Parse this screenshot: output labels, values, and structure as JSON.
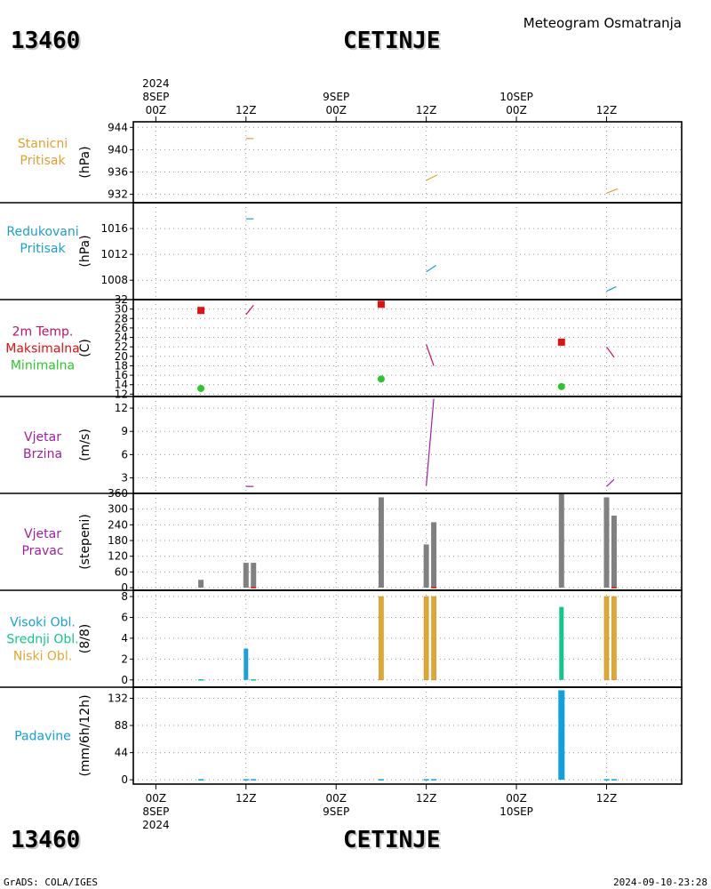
{
  "header": {
    "station_id": "13460",
    "station_name": "CETINJE",
    "product": "Meteogram Osmatranja"
  },
  "footer": {
    "credit": "GrADS: COLA/IGES",
    "timestamp": "2024-09-10-23:28"
  },
  "time_axis": {
    "ticks": [
      "00Z",
      "12Z",
      "00Z",
      "12Z",
      "00Z",
      "12Z"
    ],
    "ticks_hours": [
      0,
      12,
      24,
      36,
      48,
      60
    ],
    "top_dates": [
      {
        "hour": 0,
        "lines": [
          "2024",
          "8SEP",
          "00Z"
        ]
      },
      {
        "hour": 12,
        "lines": [
          "12Z"
        ]
      },
      {
        "hour": 24,
        "lines": [
          "9SEP",
          "00Z"
        ]
      },
      {
        "hour": 36,
        "lines": [
          "12Z"
        ]
      },
      {
        "hour": 48,
        "lines": [
          "10SEP",
          "00Z"
        ]
      },
      {
        "hour": 60,
        "lines": [
          "12Z"
        ]
      }
    ],
    "bottom_dates": [
      {
        "hour": 0,
        "lines": [
          "00Z",
          "8SEP",
          "2024"
        ]
      },
      {
        "hour": 12,
        "lines": [
          "12Z"
        ]
      },
      {
        "hour": 24,
        "lines": [
          "00Z",
          "9SEP"
        ]
      },
      {
        "hour": 36,
        "lines": [
          "12Z"
        ]
      },
      {
        "hour": 48,
        "lines": [
          "00Z",
          "10SEP"
        ]
      },
      {
        "hour": 60,
        "lines": [
          "12Z"
        ]
      }
    ],
    "range_hours": [
      -3,
      70
    ]
  },
  "colors": {
    "station_pressure": "#e0a030",
    "reduced_pressure": "#1aa0d0",
    "temperature": "#c0106a",
    "maximum": "#e41010",
    "minimum": "#28c828",
    "wind_speed": "#a020a0",
    "wind_dir_bar": "#808080",
    "wind_dir_marker": "#e41010",
    "high_cloud": "#1aa0dc",
    "mid_cloud": "#10c888",
    "low_cloud": "#e0a830",
    "precip": "#10a0e0"
  },
  "chart_data": [
    {
      "id": "station-pressure",
      "type": "line",
      "labels": [
        {
          "text": "Stanicni",
          "color": "#e0a030"
        },
        {
          "text": "Pritisak",
          "color": "#e0a030"
        }
      ],
      "ylabel": "(hPa)",
      "yticks": [
        932,
        936,
        940,
        944
      ],
      "ylim": [
        930.5,
        945
      ],
      "segments": [
        {
          "x": [
            12,
            13
          ],
          "y": [
            942.0,
            942.0
          ]
        },
        {
          "x": [
            36,
            37.5
          ],
          "y": [
            934.5,
            935.5
          ]
        },
        {
          "x": [
            60,
            61.5
          ],
          "y": [
            932.2,
            933.0
          ]
        }
      ]
    },
    {
      "id": "reduced-pressure",
      "type": "line",
      "labels": [
        {
          "text": "Redukovani",
          "color": "#1aa0d0"
        },
        {
          "text": "Pritisak",
          "color": "#1aa0d0"
        }
      ],
      "ylabel": "(hPa)",
      "yticks": [
        1008,
        1012,
        1016
      ],
      "ylim": [
        1005,
        1020
      ],
      "segments": [
        {
          "x": [
            12,
            13
          ],
          "y": [
            1017.5,
            1017.5
          ]
        },
        {
          "x": [
            36,
            37.3
          ],
          "y": [
            1009.3,
            1010.3
          ]
        },
        {
          "x": [
            60,
            61.3
          ],
          "y": [
            1006.3,
            1007.0
          ]
        }
      ]
    },
    {
      "id": "temperature",
      "type": "line+scatter",
      "labels": [
        {
          "text": "2m Temp.",
          "color": "#c0106a"
        },
        {
          "text": "Maksimalna",
          "color": "#e41010"
        },
        {
          "text": "Minimalna",
          "color": "#28c828"
        }
      ],
      "ylabel": "(C)",
      "yticks": [
        12,
        14,
        16,
        18,
        20,
        22,
        24,
        26,
        28,
        30,
        32
      ],
      "ylim": [
        11.5,
        32
      ],
      "segments": [
        {
          "x": [
            12,
            13
          ],
          "y": [
            28.8,
            30.8
          ]
        },
        {
          "x": [
            36,
            37
          ],
          "y": [
            22.5,
            18.0
          ]
        },
        {
          "x": [
            60,
            61
          ],
          "y": [
            22.0,
            19.8
          ]
        }
      ],
      "maxima": [
        {
          "x": 6,
          "y": 29.7
        },
        {
          "x": 30,
          "y": 31.0
        },
        {
          "x": 54,
          "y": 23.0
        }
      ],
      "minima": [
        {
          "x": 6,
          "y": 13.2
        },
        {
          "x": 30,
          "y": 15.2
        },
        {
          "x": 54,
          "y": 13.6
        }
      ]
    },
    {
      "id": "wind-speed",
      "type": "line",
      "labels": [
        {
          "text": "Vjetar",
          "color": "#a020a0"
        },
        {
          "text": "Brzina",
          "color": "#a020a0"
        }
      ],
      "ylabel": "(m/s)",
      "yticks": [
        3,
        6,
        9,
        12
      ],
      "ylim": [
        1,
        13.5
      ],
      "segments": [
        {
          "x": [
            12,
            13
          ],
          "y": [
            1.9,
            1.9
          ]
        },
        {
          "x": [
            36,
            37
          ],
          "y": [
            2.0,
            13.2
          ]
        },
        {
          "x": [
            60,
            61
          ],
          "y": [
            1.9,
            2.8
          ]
        }
      ]
    },
    {
      "id": "wind-direction",
      "type": "bar",
      "labels": [
        {
          "text": "Vjetar",
          "color": "#a020a0"
        },
        {
          "text": "Pravac",
          "color": "#a020a0"
        }
      ],
      "ylabel": "(stepeni)",
      "yticks": [
        0,
        60,
        120,
        180,
        240,
        300,
        360
      ],
      "ylim": [
        -10,
        360
      ],
      "bars": [
        {
          "x": 6,
          "value": 30
        },
        {
          "x": 12,
          "value": 95
        },
        {
          "x": 13,
          "value": 95
        },
        {
          "x": 30,
          "value": 345
        },
        {
          "x": 36,
          "value": 165
        },
        {
          "x": 37,
          "value": 250
        },
        {
          "x": 54,
          "value": 360
        },
        {
          "x": 60,
          "value": 345
        },
        {
          "x": 61,
          "value": 275
        }
      ],
      "calm_markers": [
        {
          "x": 13
        },
        {
          "x": 37
        },
        {
          "x": 61
        }
      ]
    },
    {
      "id": "clouds",
      "type": "bar",
      "labels": [
        {
          "text": "Visoki Obl.",
          "color": "#1aa0dc"
        },
        {
          "text": "Srednji Obl.",
          "color": "#10c888"
        },
        {
          "text": "Niski Obl.",
          "color": "#e0a830"
        }
      ],
      "ylabel": "(8/8)",
      "yticks": [
        0,
        2,
        4,
        6,
        8
      ],
      "ylim": [
        -0.7,
        8.6
      ],
      "bars": [
        {
          "x": 12,
          "value": 3,
          "layer": "high"
        },
        {
          "x": 30,
          "value": 8,
          "layer": "low"
        },
        {
          "x": 36,
          "value": 8,
          "layer": "low"
        },
        {
          "x": 37,
          "value": 8,
          "layer": "low"
        },
        {
          "x": 54,
          "value": 7,
          "layer": "mid"
        },
        {
          "x": 60,
          "value": 8,
          "layer": "low"
        },
        {
          "x": 61,
          "value": 8,
          "layer": "low"
        }
      ],
      "zero_marks": [
        {
          "x": 6,
          "layer": "mid"
        },
        {
          "x": 13,
          "layer": "mid"
        }
      ]
    },
    {
      "id": "precipitation",
      "type": "bar",
      "labels": [
        {
          "text": "Padavine",
          "color": "#10a0e0"
        }
      ],
      "ylabel": "(mm/6h/12h)",
      "yticks": [
        0,
        44,
        88,
        132
      ],
      "ylim": [
        -7,
        150
      ],
      "bars": [
        {
          "x": 54,
          "value": 145
        }
      ],
      "zero_marks": [
        {
          "x": 6
        },
        {
          "x": 12
        },
        {
          "x": 13
        },
        {
          "x": 30
        },
        {
          "x": 36
        },
        {
          "x": 37
        },
        {
          "x": 60
        },
        {
          "x": 61
        }
      ]
    }
  ]
}
